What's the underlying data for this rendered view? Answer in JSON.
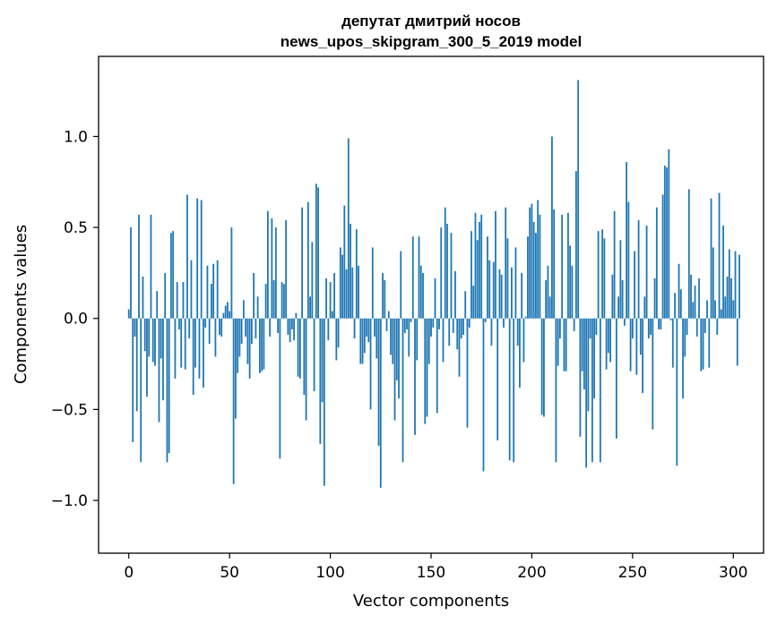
{
  "chart_data": {
    "type": "bar",
    "title_line1": "депутат дмитрий носов",
    "title_line2": "news_upos_skipgram_300_5_2019 model",
    "xlabel": "Vector components",
    "ylabel": "Components values",
    "xlim": [
      -15,
      315
    ],
    "ylim": [
      -1.29,
      1.44
    ],
    "xticks": [
      0,
      50,
      100,
      150,
      200,
      250,
      300
    ],
    "xtick_labels": [
      "0",
      "50",
      "100",
      "150",
      "200",
      "250",
      "300"
    ],
    "yticks": [
      -1.0,
      -0.5,
      0.0,
      0.5,
      1.0
    ],
    "ytick_labels": [
      "−1.0",
      "−0.5",
      "0.0",
      "0.5",
      "1.0"
    ],
    "bar_color": "#1f77b4",
    "grid": false,
    "values": [
      0.05,
      0.5,
      -0.68,
      -0.1,
      -0.51,
      0.57,
      -0.79,
      0.23,
      -0.18,
      -0.43,
      -0.21,
      0.57,
      -0.24,
      -0.26,
      0.15,
      -0.57,
      -0.22,
      -0.45,
      0.25,
      -0.79,
      -0.74,
      0.47,
      0.48,
      -0.33,
      0.2,
      -0.06,
      -0.27,
      0.2,
      -0.28,
      0.68,
      -0.11,
      0.32,
      -0.42,
      -0.27,
      0.66,
      -0.33,
      0.65,
      -0.38,
      -0.05,
      0.29,
      -0.14,
      0.19,
      0.3,
      -0.21,
      0.32,
      -0.09,
      -0.1,
      0.03,
      0.07,
      0.09,
      0.04,
      0.5,
      -0.91,
      -0.55,
      -0.3,
      -0.21,
      -0.14,
      0.1,
      -0.1,
      -0.25,
      -0.33,
      -0.14,
      0.25,
      -0.11,
      0.12,
      -0.3,
      -0.29,
      -0.28,
      0.19,
      0.59,
      -0.1,
      0.55,
      0.21,
      0.5,
      -0.08,
      -0.77,
      0.2,
      0.19,
      0.54,
      -0.09,
      -0.13,
      -0.06,
      -0.12,
      0.03,
      -0.32,
      -0.33,
      0.61,
      -0.42,
      -0.56,
      0.64,
      0.12,
      0.42,
      -0.4,
      0.74,
      0.72,
      -0.69,
      -0.46,
      -0.92,
      0.22,
      -0.12,
      0.2,
      0.04,
      0.25,
      -0.23,
      -0.16,
      0.39,
      0.35,
      0.62,
      0.27,
      0.99,
      0.52,
      0.28,
      -0.11,
      0.49,
      0.29,
      -0.25,
      -0.25,
      -0.19,
      -0.1,
      -0.13,
      -0.5,
      0.39,
      -0.1,
      -0.22,
      -0.7,
      -0.93,
      0.25,
      0.21,
      -0.07,
      0.04,
      -0.2,
      -0.25,
      -0.56,
      -0.34,
      -0.44,
      0.37,
      -0.79,
      -0.08,
      -0.06,
      -0.21,
      -0.02,
      0.45,
      -0.64,
      -0.23,
      0.45,
      0.29,
      0.25,
      -0.58,
      -0.54,
      -0.25,
      -0.1,
      -0.05,
      0.22,
      -0.52,
      -0.06,
      0.5,
      -0.24,
      0.61,
      0.52,
      -0.15,
      0.47,
      -0.08,
      0.26,
      -0.17,
      -0.32,
      -0.11,
      -0.09,
      0.15,
      -0.6,
      -0.05,
      0.48,
      0.18,
      0.58,
      0.43,
      0.53,
      0.57,
      -0.84,
      -0.02,
      0.45,
      0.32,
      -0.15,
      0.31,
      0.59,
      -0.67,
      0.27,
      0.24,
      -0.05,
      0.61,
      0.44,
      -0.78,
      0.28,
      -0.79,
      0.39,
      -0.15,
      -0.38,
      0.25,
      -0.24,
      0.01,
      0.45,
      0.61,
      0.63,
      0.53,
      0.47,
      0.65,
      0.57,
      -0.53,
      -0.54,
      0.21,
      0.29,
      0.12,
      1.0,
      0.6,
      -0.79,
      -0.26,
      -0.11,
      0.57,
      -0.29,
      -0.29,
      0.58,
      0.4,
      0.29,
      -0.07,
      0.81,
      1.31,
      -0.65,
      -0.29,
      -0.39,
      -0.82,
      -0.51,
      -0.11,
      -0.79,
      -0.44,
      -0.09,
      0.48,
      -0.79,
      0.49,
      0.44,
      -0.28,
      -0.19,
      -0.24,
      0.24,
      0.59,
      -0.66,
      0.12,
      0.43,
      0.21,
      -0.04,
      0.86,
      0.64,
      -0.29,
      -0.11,
      0.37,
      -0.31,
      0.54,
      -0.2,
      -0.41,
      0.12,
      0.51,
      -0.11,
      -0.09,
      -0.61,
      0.22,
      0.61,
      -0.06,
      -0.06,
      0.68,
      0.84,
      0.83,
      0.93,
      -0.01,
      -0.27,
      0.14,
      -0.81,
      0.3,
      0.16,
      -0.44,
      -0.21,
      -0.09,
      0.71,
      0.24,
      0.09,
      0.18,
      -0.1,
      0.22,
      -0.29,
      -0.28,
      -0.08,
      0.1,
      -0.27,
      0.66,
      0.39,
      0.1,
      -0.09,
      0.69,
      0.05,
      0.51,
      0.12,
      0.23,
      0.38,
      0.22,
      0.1,
      0.37,
      -0.26,
      0.35
    ]
  }
}
